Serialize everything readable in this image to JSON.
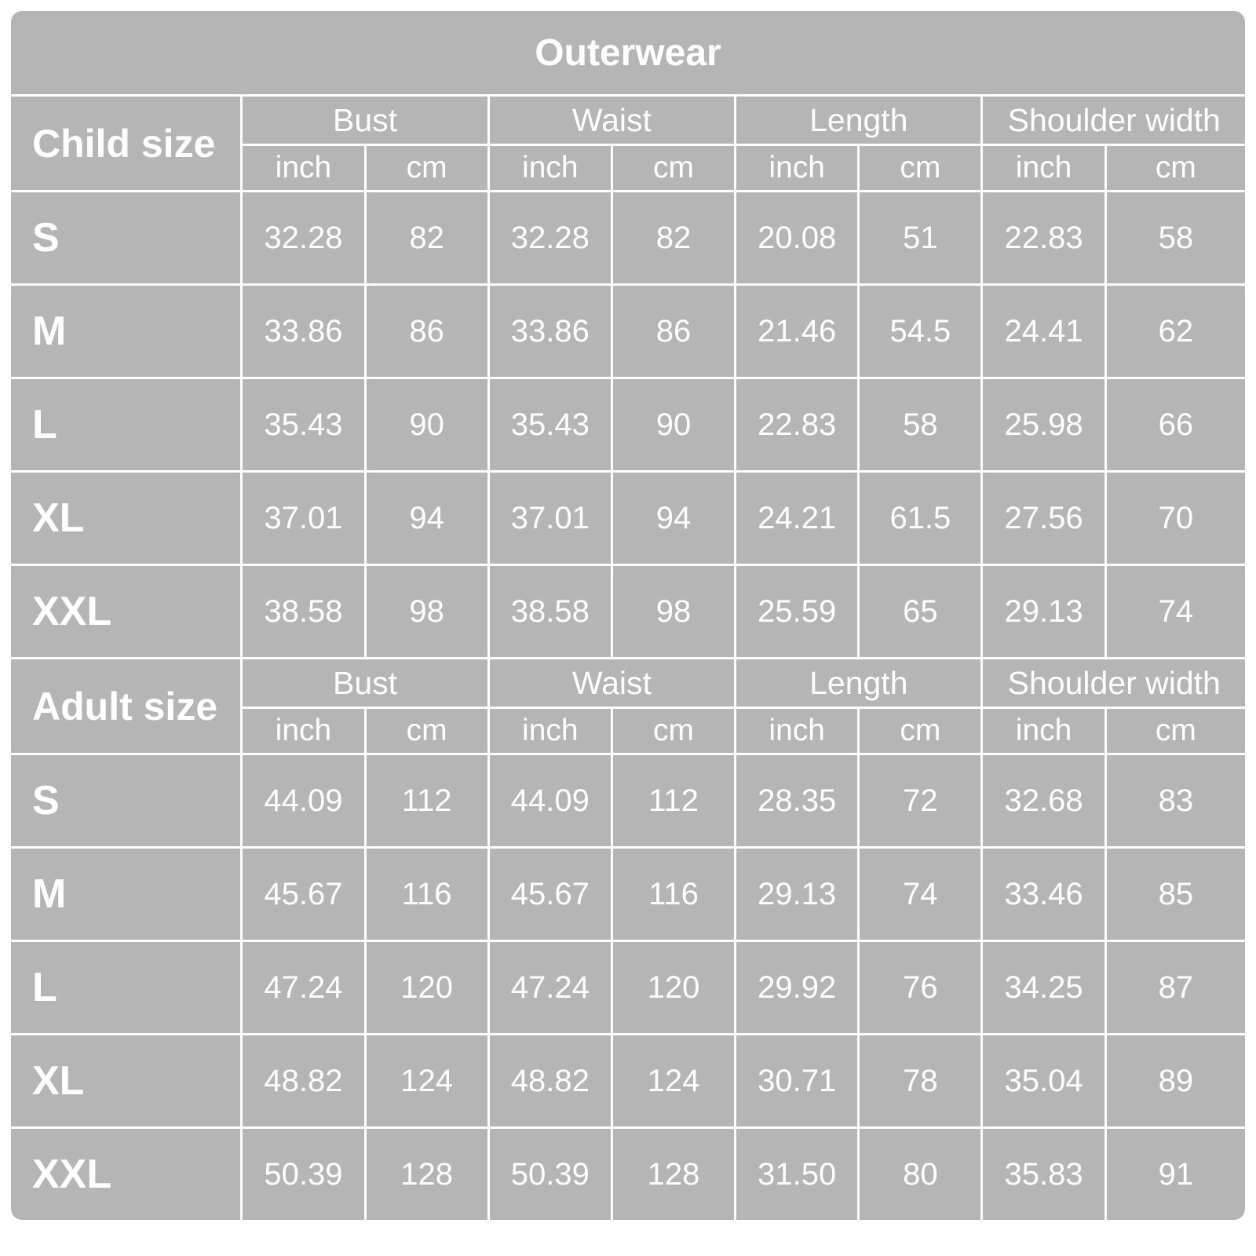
{
  "title": "Outerwear",
  "colors": {
    "table_background": "#b5b5b5",
    "grid_lines": "#ffffff",
    "text": "#ffffff",
    "page_background": "#ffffff"
  },
  "chart_data": {
    "type": "table",
    "title": "Outerwear",
    "column_groups": [
      "Bust",
      "Waist",
      "Length",
      "Shoulder width"
    ],
    "units": [
      "inch",
      "cm"
    ],
    "sections": [
      {
        "label": "Child size",
        "rows": [
          {
            "size": "S",
            "values": [
              "32.28",
              "82",
              "32.28",
              "82",
              "20.08",
              "51",
              "22.83",
              "58"
            ]
          },
          {
            "size": "M",
            "values": [
              "33.86",
              "86",
              "33.86",
              "86",
              "21.46",
              "54.5",
              "24.41",
              "62"
            ]
          },
          {
            "size": "L",
            "values": [
              "35.43",
              "90",
              "35.43",
              "90",
              "22.83",
              "58",
              "25.98",
              "66"
            ]
          },
          {
            "size": "XL",
            "values": [
              "37.01",
              "94",
              "37.01",
              "94",
              "24.21",
              "61.5",
              "27.56",
              "70"
            ]
          },
          {
            "size": "XXL",
            "values": [
              "38.58",
              "98",
              "38.58",
              "98",
              "25.59",
              "65",
              "29.13",
              "74"
            ]
          }
        ]
      },
      {
        "label": "Adult size",
        "rows": [
          {
            "size": "S",
            "values": [
              "44.09",
              "112",
              "44.09",
              "112",
              "28.35",
              "72",
              "32.68",
              "83"
            ]
          },
          {
            "size": "M",
            "values": [
              "45.67",
              "116",
              "45.67",
              "116",
              "29.13",
              "74",
              "33.46",
              "85"
            ]
          },
          {
            "size": "L",
            "values": [
              "47.24",
              "120",
              "47.24",
              "120",
              "29.92",
              "76",
              "34.25",
              "87"
            ]
          },
          {
            "size": "XL",
            "values": [
              "48.82",
              "124",
              "48.82",
              "124",
              "30.71",
              "78",
              "35.04",
              "89"
            ]
          },
          {
            "size": "XXL",
            "values": [
              "50.39",
              "128",
              "50.39",
              "128",
              "31.50",
              "80",
              "35.83",
              "91"
            ]
          }
        ]
      }
    ]
  }
}
